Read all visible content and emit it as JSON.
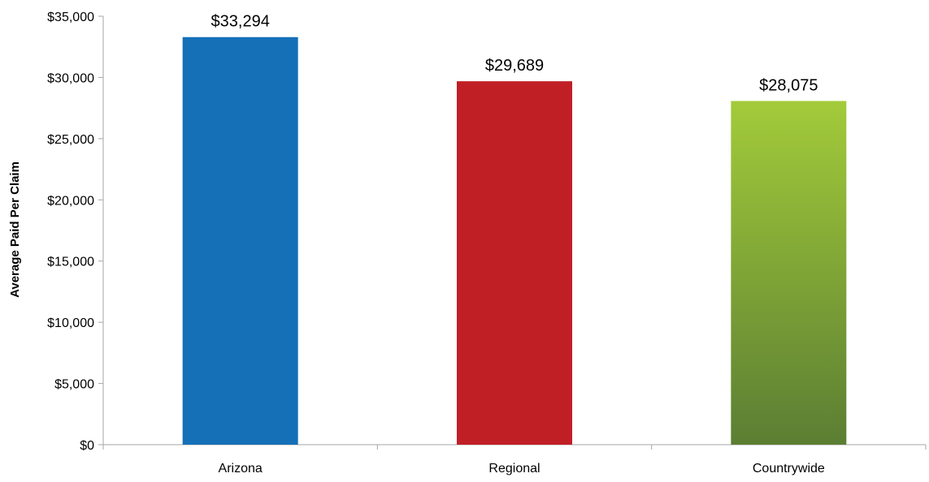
{
  "chart_data": {
    "type": "bar",
    "title": "",
    "xlabel": "",
    "ylabel": "Average Paid Per Claim",
    "categories": [
      "Arizona",
      "Regional",
      "Countrywide"
    ],
    "values": [
      33294,
      29689,
      28075
    ],
    "data_labels": [
      "$33,294",
      "$29,689",
      "$28,075"
    ],
    "ylim": [
      0,
      35000
    ],
    "yticks": [
      0,
      5000,
      10000,
      15000,
      20000,
      25000,
      30000,
      35000
    ],
    "ytick_labels": [
      "$0",
      "$5,000",
      "$10,000",
      "$15,000",
      "$20,000",
      "$25,000",
      "$30,000",
      "$35,000"
    ],
    "grid": false,
    "legend": "none",
    "bar_colors": [
      {
        "top": "#1570B8",
        "bottom": "#1570B8"
      },
      {
        "top": "#C11F26",
        "bottom": "#C11F26"
      },
      {
        "top": "#A3CB3A",
        "bottom": "#5B7E33"
      }
    ],
    "axis_color": "#A6A6A6"
  }
}
